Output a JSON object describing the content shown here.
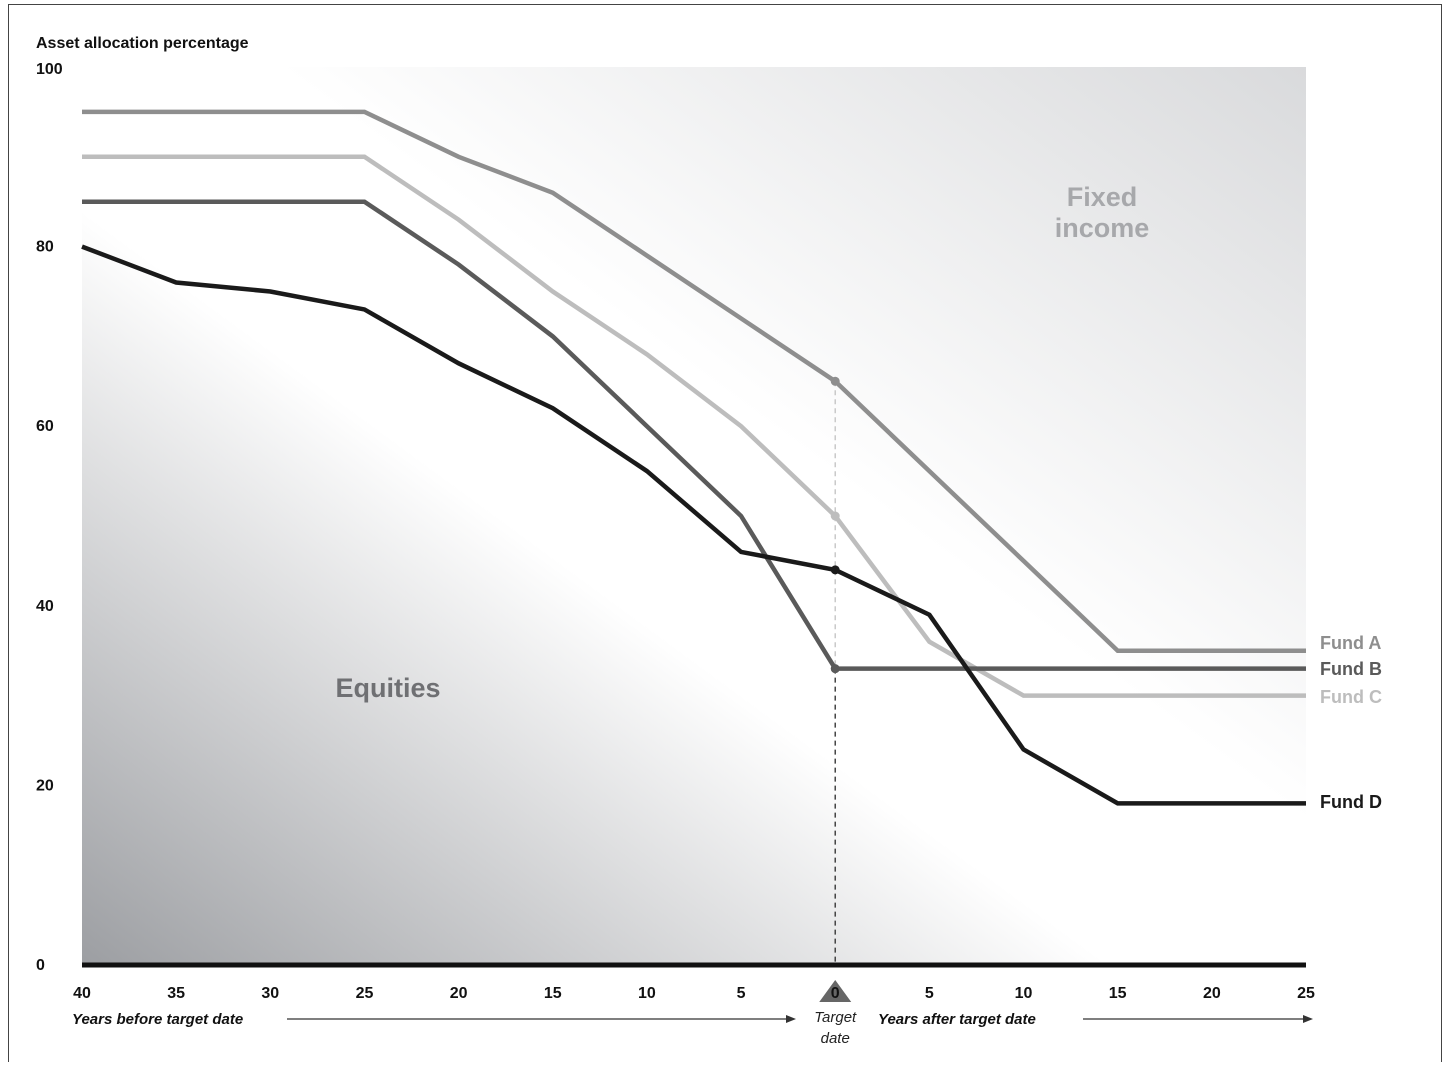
{
  "chart_data": {
    "type": "line",
    "ylabel": "Asset allocation percentage",
    "ylim": [
      0,
      100
    ],
    "yticks": [
      "0",
      "20",
      "40",
      "60",
      "80",
      "100"
    ],
    "x": [
      -40,
      -35,
      -30,
      -25,
      -20,
      -15,
      -10,
      -5,
      0,
      5,
      10,
      15,
      20,
      25
    ],
    "xticks": [
      "40",
      "35",
      "30",
      "25",
      "20",
      "15",
      "10",
      "5",
      "0",
      "5",
      "10",
      "15",
      "20",
      "25"
    ],
    "xlabel_before": "Years before target date",
    "xlabel_after": "Years after target date",
    "target_label_line1": "Target",
    "target_label_line2": "date",
    "region_labels": {
      "equities": "Equities",
      "fixed_income_line1": "Fixed",
      "fixed_income_line2": "income"
    },
    "series": [
      {
        "name": "Fund A",
        "color": "#8e8e8e",
        "values": [
          95,
          95,
          95,
          95,
          90,
          86,
          79,
          72,
          65,
          55,
          45,
          35,
          35,
          35
        ]
      },
      {
        "name": "Fund B",
        "color": "#5a5a5a",
        "values": [
          85,
          85,
          85,
          85,
          78,
          70,
          60,
          50,
          33,
          33,
          33,
          33,
          33,
          33
        ]
      },
      {
        "name": "Fund C",
        "color": "#bdbdbd",
        "values": [
          90,
          90,
          90,
          90,
          83,
          75,
          68,
          60,
          50,
          36,
          30,
          30,
          30,
          30
        ]
      },
      {
        "name": "Fund D",
        "color": "#1a1a1a",
        "values": [
          80,
          76,
          75,
          73,
          67,
          62,
          55,
          46,
          44,
          39,
          24,
          18,
          18,
          18
        ]
      }
    ],
    "region_colors": {
      "equities_dark": "#9c9ea2",
      "fixed_light": "#d9dadc",
      "region_text_equities": "#6f7073",
      "region_text_fixed": "#a7a8ab"
    }
  }
}
